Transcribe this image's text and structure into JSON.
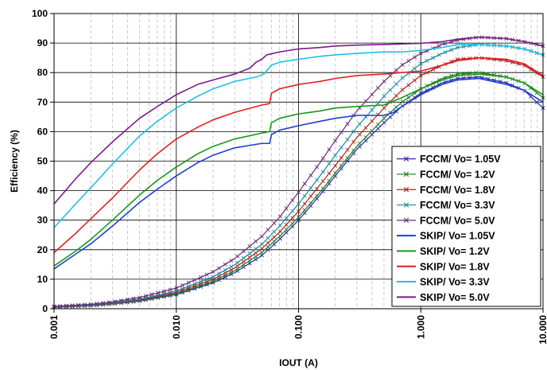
{
  "chart_data": {
    "type": "line",
    "title": "",
    "xlabel": "IOUT (A)",
    "ylabel": "Efficiency (%)",
    "x_scale": "log",
    "xlim": [
      0.001,
      10.0
    ],
    "ylim": [
      0,
      100
    ],
    "x_ticks": [
      0.001,
      0.01,
      0.1,
      1.0,
      10.0
    ],
    "x_tick_labels": [
      "0.001",
      "0.010",
      "0.100",
      "1.000",
      "10.000"
    ],
    "y_ticks": [
      0,
      10,
      20,
      30,
      40,
      50,
      60,
      70,
      80,
      90,
      100
    ],
    "y_tick_labels": [
      "0",
      "10",
      "20",
      "30",
      "40",
      "50",
      "60",
      "70",
      "80",
      "90",
      "100"
    ],
    "grid": true,
    "legend_position": "bottom-right",
    "series": [
      {
        "name": "FCCM/ Vo= 1.05V",
        "color": "#2a2aa8",
        "marker": "x",
        "x": [
          0.001,
          0.002,
          0.003,
          0.005,
          0.01,
          0.02,
          0.03,
          0.05,
          0.07,
          0.1,
          0.15,
          0.2,
          0.3,
          0.5,
          0.7,
          1.0,
          1.5,
          2.0,
          3.0,
          5.0,
          7.0,
          10.0
        ],
        "y": [
          0.5,
          1.0,
          1.6,
          2.6,
          4.8,
          8.8,
          12.2,
          18.0,
          23.5,
          30.0,
          38.5,
          45.0,
          54.0,
          63.0,
          68.5,
          73.0,
          76.5,
          78.0,
          78.5,
          76.5,
          74.0,
          68.0
        ]
      },
      {
        "name": "FCCM/ Vo= 1.2V",
        "color": "#1e7a1e",
        "marker": "x",
        "x": [
          0.001,
          0.002,
          0.003,
          0.005,
          0.01,
          0.02,
          0.03,
          0.05,
          0.07,
          0.1,
          0.15,
          0.2,
          0.3,
          0.5,
          0.7,
          1.0,
          1.5,
          2.0,
          3.0,
          5.0,
          7.0,
          10.0
        ],
        "y": [
          0.6,
          1.1,
          1.7,
          2.8,
          5.1,
          9.3,
          12.9,
          19.0,
          24.5,
          31.0,
          39.5,
          46.0,
          55.0,
          64.5,
          70.0,
          74.5,
          78.0,
          79.5,
          80.0,
          78.5,
          76.5,
          71.5
        ]
      },
      {
        "name": "FCCM/ Vo= 1.8V",
        "color": "#b02020",
        "marker": "x",
        "x": [
          0.001,
          0.002,
          0.003,
          0.005,
          0.01,
          0.02,
          0.03,
          0.05,
          0.07,
          0.1,
          0.15,
          0.2,
          0.3,
          0.5,
          0.7,
          1.0,
          1.5,
          2.0,
          3.0,
          5.0,
          7.0,
          10.0
        ],
        "y": [
          0.6,
          1.2,
          1.8,
          3.0,
          5.5,
          10.0,
          13.8,
          20.3,
          26.0,
          33.0,
          42.0,
          48.5,
          58.0,
          68.0,
          74.0,
          79.0,
          82.5,
          84.5,
          85.0,
          84.0,
          82.5,
          78.5
        ]
      },
      {
        "name": "FCCM/ Vo= 3.3V",
        "color": "#1a8a9a",
        "marker": "x",
        "x": [
          0.001,
          0.002,
          0.003,
          0.005,
          0.01,
          0.02,
          0.03,
          0.05,
          0.07,
          0.1,
          0.15,
          0.2,
          0.3,
          0.5,
          0.7,
          1.0,
          1.5,
          2.0,
          3.0,
          5.0,
          7.0,
          10.0
        ],
        "y": [
          0.7,
          1.3,
          2.0,
          3.2,
          6.0,
          10.8,
          14.9,
          21.8,
          28.0,
          35.5,
          45.0,
          52.0,
          61.5,
          72.0,
          78.0,
          83.0,
          86.5,
          88.5,
          89.5,
          89.0,
          88.0,
          86.0
        ]
      },
      {
        "name": "FCCM/ Vo= 5.0V",
        "color": "#6a2a7a",
        "marker": "x",
        "x": [
          0.001,
          0.002,
          0.003,
          0.005,
          0.01,
          0.02,
          0.03,
          0.05,
          0.07,
          0.1,
          0.15,
          0.2,
          0.3,
          0.5,
          0.7,
          1.0,
          1.5,
          2.0,
          3.0,
          5.0,
          7.0,
          10.0
        ],
        "y": [
          0.8,
          1.5,
          2.3,
          3.8,
          7.0,
          12.5,
          17.0,
          24.5,
          31.0,
          39.5,
          49.5,
          57.0,
          67.0,
          77.0,
          82.5,
          86.5,
          89.5,
          91.0,
          92.0,
          91.5,
          90.5,
          89.0
        ]
      },
      {
        "name": "SKIP/ Vo= 1.05V",
        "color": "#1f3fd0",
        "marker": "none",
        "x": [
          0.001,
          0.0015,
          0.002,
          0.003,
          0.005,
          0.007,
          0.01,
          0.015,
          0.02,
          0.03,
          0.05,
          0.058,
          0.06,
          0.07,
          0.1,
          0.15,
          0.2,
          0.3,
          0.5,
          0.6,
          0.7,
          1.0,
          1.5,
          2.0,
          3.0,
          5.0,
          7.0,
          10.0
        ],
        "y": [
          13.5,
          18.5,
          22.0,
          28.0,
          36.0,
          40.5,
          45.0,
          49.5,
          52.0,
          54.5,
          56.0,
          56.0,
          59.0,
          60.5,
          62.0,
          63.5,
          64.5,
          65.5,
          65.5,
          66.5,
          68.5,
          72.5,
          76.0,
          77.5,
          78.0,
          76.0,
          74.0,
          70.0
        ]
      },
      {
        "name": "SKIP/ Vo= 1.2V",
        "color": "#159a15",
        "marker": "none",
        "x": [
          0.001,
          0.0015,
          0.002,
          0.003,
          0.005,
          0.007,
          0.01,
          0.015,
          0.02,
          0.03,
          0.05,
          0.058,
          0.06,
          0.07,
          0.1,
          0.15,
          0.2,
          0.3,
          0.5,
          0.7,
          1.0,
          1.5,
          2.0,
          3.0,
          5.0,
          7.0,
          10.0
        ],
        "y": [
          14.5,
          19.5,
          23.5,
          30.0,
          38.5,
          43.5,
          48.0,
          52.5,
          55.0,
          57.5,
          59.5,
          60.0,
          63.0,
          64.5,
          66.0,
          67.0,
          68.0,
          68.5,
          69.0,
          71.5,
          74.5,
          77.5,
          79.0,
          79.5,
          78.5,
          76.5,
          72.5
        ]
      },
      {
        "name": "SKIP/ Vo= 1.8V",
        "color": "#e02020",
        "marker": "none",
        "x": [
          0.001,
          0.0015,
          0.002,
          0.003,
          0.005,
          0.007,
          0.01,
          0.015,
          0.02,
          0.03,
          0.05,
          0.058,
          0.06,
          0.07,
          0.1,
          0.15,
          0.2,
          0.3,
          0.5,
          0.7,
          1.0,
          1.5,
          2.0,
          3.0,
          5.0,
          7.0,
          10.0
        ],
        "y": [
          19.0,
          25.5,
          30.5,
          37.5,
          47.0,
          52.5,
          57.5,
          61.5,
          64.0,
          66.5,
          69.0,
          69.5,
          73.0,
          74.5,
          76.0,
          77.0,
          78.0,
          79.0,
          79.5,
          80.0,
          80.5,
          82.5,
          84.0,
          85.0,
          84.5,
          83.0,
          79.0
        ]
      },
      {
        "name": "SKIP/ Vo= 3.3V",
        "color": "#20c0e8",
        "marker": "none",
        "x": [
          0.001,
          0.0015,
          0.002,
          0.003,
          0.005,
          0.007,
          0.01,
          0.015,
          0.02,
          0.03,
          0.045,
          0.052,
          0.06,
          0.07,
          0.1,
          0.15,
          0.2,
          0.3,
          0.5,
          0.7,
          1.0,
          1.5,
          2.0,
          3.0,
          5.0,
          7.0,
          10.0
        ],
        "y": [
          27.5,
          35.5,
          41.0,
          49.0,
          58.5,
          63.5,
          68.0,
          72.0,
          74.5,
          77.0,
          78.5,
          79.5,
          82.5,
          83.5,
          84.5,
          85.5,
          86.0,
          86.5,
          87.0,
          87.0,
          87.5,
          88.5,
          89.5,
          89.5,
          89.0,
          88.0,
          86.0
        ]
      },
      {
        "name": "SKIP/ Vo= 5.0V",
        "color": "#7a1a8a",
        "marker": "none",
        "x": [
          0.001,
          0.0015,
          0.002,
          0.003,
          0.005,
          0.007,
          0.01,
          0.015,
          0.02,
          0.03,
          0.04,
          0.045,
          0.05,
          0.055,
          0.07,
          0.1,
          0.15,
          0.2,
          0.3,
          0.5,
          0.7,
          1.0,
          1.5,
          2.0,
          3.0,
          5.0,
          7.0,
          10.0
        ],
        "y": [
          35.5,
          44.0,
          49.5,
          56.5,
          64.5,
          68.5,
          72.5,
          76.0,
          77.5,
          79.5,
          81.5,
          83.5,
          84.5,
          86.0,
          87.0,
          88.0,
          88.5,
          89.0,
          89.3,
          89.5,
          89.7,
          89.9,
          90.5,
          91.3,
          92.0,
          91.5,
          90.5,
          89.0
        ]
      }
    ]
  }
}
